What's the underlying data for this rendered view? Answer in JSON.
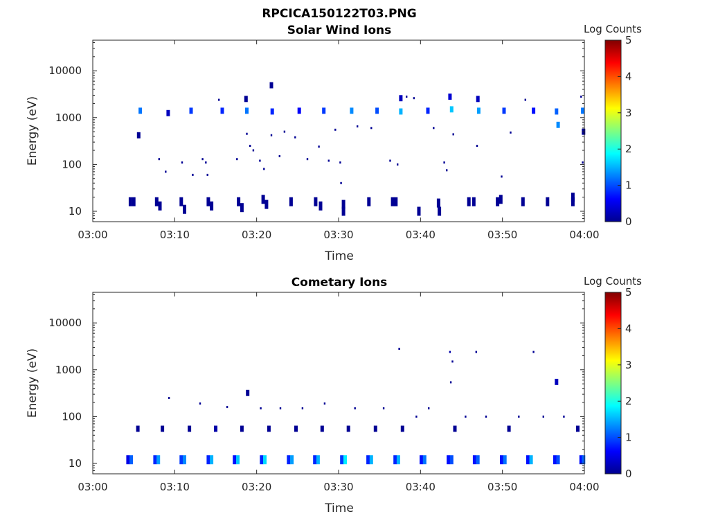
{
  "figure_title": "RPCICA150122T03.PNG",
  "chart_data": [
    {
      "type": "heatmap",
      "title": "Solar Wind Ions",
      "xlabel": "Time",
      "ylabel": "Energy (eV)",
      "y_scale": "log",
      "xlim": [
        "03:00",
        "04:00"
      ],
      "ylim": [
        6,
        45000
      ],
      "x_ticks": [
        "03:00",
        "03:10",
        "03:20",
        "03:30",
        "03:40",
        "03:50",
        "04:00"
      ],
      "y_ticks": [
        "10",
        "100",
        "1000",
        "10000"
      ],
      "colorbar": {
        "label": "Log Counts",
        "range": [
          0,
          5
        ],
        "ticks": [
          "0",
          "1",
          "2",
          "3",
          "4",
          "5"
        ],
        "colormap": "jet"
      },
      "cells": [
        {
          "t": 4.6,
          "e": 16,
          "c": 0.1
        },
        {
          "t": 5.0,
          "e": 16,
          "c": 0.1
        },
        {
          "t": 5.8,
          "e": 1400,
          "c": 1.2
        },
        {
          "t": 5.6,
          "e": 420,
          "c": 0.1
        },
        {
          "t": 7.8,
          "e": 16,
          "c": 0.1
        },
        {
          "t": 8.2,
          "e": 13,
          "c": 0.1
        },
        {
          "t": 9.2,
          "e": 1250,
          "c": 0.3
        },
        {
          "t": 10.8,
          "e": 16,
          "c": 0.1
        },
        {
          "t": 11.2,
          "e": 11,
          "c": 0.1
        },
        {
          "t": 12.0,
          "e": 1400,
          "c": 0.9
        },
        {
          "t": 14.1,
          "e": 16,
          "c": 0.1
        },
        {
          "t": 14.5,
          "e": 13,
          "c": 0.1
        },
        {
          "t": 15.8,
          "e": 1400,
          "c": 0.8
        },
        {
          "t": 17.8,
          "e": 16,
          "c": 0.1
        },
        {
          "t": 18.2,
          "e": 12,
          "c": 0.1
        },
        {
          "t": 18.8,
          "e": 1400,
          "c": 1.2
        },
        {
          "t": 18.7,
          "e": 2500,
          "c": 0.1
        },
        {
          "t": 20.8,
          "e": 18,
          "c": 0.1
        },
        {
          "t": 21.2,
          "e": 14,
          "c": 0.1
        },
        {
          "t": 21.9,
          "e": 1350,
          "c": 0.8
        },
        {
          "t": 21.8,
          "e": 4900,
          "c": 0.1
        },
        {
          "t": 24.2,
          "e": 16,
          "c": 0.1
        },
        {
          "t": 25.2,
          "e": 1400,
          "c": 0.6
        },
        {
          "t": 27.2,
          "e": 16,
          "c": 0.1
        },
        {
          "t": 27.8,
          "e": 13,
          "c": 0.1
        },
        {
          "t": 28.2,
          "e": 1400,
          "c": 0.9
        },
        {
          "t": 30.6,
          "e": 14,
          "c": 0.1
        },
        {
          "t": 30.6,
          "e": 10,
          "c": 0.1
        },
        {
          "t": 31.6,
          "e": 1400,
          "c": 1.3
        },
        {
          "t": 33.7,
          "e": 16,
          "c": 0.1
        },
        {
          "t": 34.7,
          "e": 1400,
          "c": 1.0
        },
        {
          "t": 36.6,
          "e": 16,
          "c": 0.1
        },
        {
          "t": 37.0,
          "e": 16,
          "c": 0.1
        },
        {
          "t": 37.6,
          "e": 1350,
          "c": 1.5
        },
        {
          "t": 37.6,
          "e": 2600,
          "c": 0.3
        },
        {
          "t": 39.8,
          "e": 10,
          "c": 0.1
        },
        {
          "t": 40.9,
          "e": 1400,
          "c": 0.8
        },
        {
          "t": 42.2,
          "e": 15,
          "c": 0.1
        },
        {
          "t": 42.3,
          "e": 10,
          "c": 0.1
        },
        {
          "t": 43.8,
          "e": 1500,
          "c": 1.6
        },
        {
          "t": 43.6,
          "e": 2800,
          "c": 0.4
        },
        {
          "t": 45.9,
          "e": 16,
          "c": 0.1
        },
        {
          "t": 46.5,
          "e": 16,
          "c": 0.1
        },
        {
          "t": 47.1,
          "e": 1400,
          "c": 1.4
        },
        {
          "t": 47.0,
          "e": 2500,
          "c": 0.3
        },
        {
          "t": 49.4,
          "e": 16,
          "c": 0.1
        },
        {
          "t": 49.8,
          "e": 18,
          "c": 0.1
        },
        {
          "t": 50.2,
          "e": 1400,
          "c": 0.9
        },
        {
          "t": 52.5,
          "e": 16,
          "c": 0.1
        },
        {
          "t": 53.8,
          "e": 1400,
          "c": 0.7
        },
        {
          "t": 55.5,
          "e": 16,
          "c": 0.1
        },
        {
          "t": 56.6,
          "e": 1350,
          "c": 1.1
        },
        {
          "t": 56.8,
          "e": 700,
          "c": 1.3
        },
        {
          "t": 58.6,
          "e": 16,
          "c": 0.1
        },
        {
          "t": 58.6,
          "e": 20,
          "c": 0.1
        },
        {
          "t": 59.8,
          "e": 1400,
          "c": 1.2
        },
        {
          "t": 59.9,
          "e": 500,
          "c": 0.1
        }
      ],
      "specks": [
        {
          "t": 8.1,
          "e": 130,
          "c": 0.1
        },
        {
          "t": 8.9,
          "e": 70,
          "c": 0.1
        },
        {
          "t": 10.9,
          "e": 110,
          "c": 0.1
        },
        {
          "t": 12.2,
          "e": 60,
          "c": 0.1
        },
        {
          "t": 13.4,
          "e": 130,
          "c": 0.1
        },
        {
          "t": 13.8,
          "e": 110,
          "c": 0.1
        },
        {
          "t": 14.0,
          "e": 60,
          "c": 0.1
        },
        {
          "t": 15.4,
          "e": 2400,
          "c": 0.1
        },
        {
          "t": 17.6,
          "e": 130,
          "c": 0.1
        },
        {
          "t": 18.8,
          "e": 450,
          "c": 0.1
        },
        {
          "t": 19.2,
          "e": 250,
          "c": 0.1
        },
        {
          "t": 19.6,
          "e": 200,
          "c": 0.1
        },
        {
          "t": 20.4,
          "e": 120,
          "c": 0.1
        },
        {
          "t": 20.9,
          "e": 80,
          "c": 0.1
        },
        {
          "t": 21.8,
          "e": 420,
          "c": 0.1
        },
        {
          "t": 22.8,
          "e": 150,
          "c": 0.1
        },
        {
          "t": 23.4,
          "e": 500,
          "c": 0.1
        },
        {
          "t": 24.7,
          "e": 380,
          "c": 0.1
        },
        {
          "t": 26.2,
          "e": 130,
          "c": 0.1
        },
        {
          "t": 27.6,
          "e": 240,
          "c": 0.1
        },
        {
          "t": 28.8,
          "e": 120,
          "c": 0.1
        },
        {
          "t": 29.6,
          "e": 550,
          "c": 0.1
        },
        {
          "t": 30.2,
          "e": 110,
          "c": 0.1
        },
        {
          "t": 30.3,
          "e": 40,
          "c": 0.1
        },
        {
          "t": 32.3,
          "e": 650,
          "c": 0.1
        },
        {
          "t": 34.0,
          "e": 600,
          "c": 0.1
        },
        {
          "t": 36.3,
          "e": 120,
          "c": 0.1
        },
        {
          "t": 37.2,
          "e": 100,
          "c": 0.1
        },
        {
          "t": 38.3,
          "e": 2800,
          "c": 0.1
        },
        {
          "t": 39.2,
          "e": 2600,
          "c": 0.1
        },
        {
          "t": 41.6,
          "e": 600,
          "c": 0.1
        },
        {
          "t": 42.9,
          "e": 110,
          "c": 0.1
        },
        {
          "t": 43.2,
          "e": 75,
          "c": 0.1
        },
        {
          "t": 44.0,
          "e": 440,
          "c": 0.1
        },
        {
          "t": 46.9,
          "e": 250,
          "c": 0.1
        },
        {
          "t": 49.9,
          "e": 55,
          "c": 0.1
        },
        {
          "t": 51.0,
          "e": 480,
          "c": 0.1
        },
        {
          "t": 52.8,
          "e": 2400,
          "c": 0.1
        },
        {
          "t": 59.6,
          "e": 2800,
          "c": 0.1
        },
        {
          "t": 59.8,
          "e": 110,
          "c": 0.1
        }
      ]
    },
    {
      "type": "heatmap",
      "title": "Cometary Ions",
      "xlabel": "Time",
      "ylabel": "Energy (eV)",
      "y_scale": "log",
      "xlim": [
        "03:00",
        "04:00"
      ],
      "ylim": [
        6,
        45000
      ],
      "x_ticks": [
        "03:00",
        "03:10",
        "03:20",
        "03:30",
        "03:40",
        "03:50",
        "04:00"
      ],
      "y_ticks": [
        "10",
        "100",
        "1000",
        "10000"
      ],
      "colorbar": {
        "label": "Log Counts",
        "range": [
          0,
          5
        ],
        "ticks": [
          "0",
          "1",
          "2",
          "3",
          "4",
          "5"
        ],
        "colormap": "jet"
      },
      "cells": [
        {
          "t": 4.3,
          "e": 12,
          "c": 0.5
        },
        {
          "t": 4.7,
          "e": 12,
          "c": 1.1
        },
        {
          "t": 7.6,
          "e": 12,
          "c": 0.8
        },
        {
          "t": 8.0,
          "e": 12,
          "c": 1.4
        },
        {
          "t": 10.8,
          "e": 12,
          "c": 0.9
        },
        {
          "t": 11.2,
          "e": 12,
          "c": 1.3
        },
        {
          "t": 14.1,
          "e": 12,
          "c": 0.8
        },
        {
          "t": 14.5,
          "e": 12,
          "c": 1.5
        },
        {
          "t": 17.3,
          "e": 12,
          "c": 0.7
        },
        {
          "t": 17.7,
          "e": 12,
          "c": 1.6
        },
        {
          "t": 20.6,
          "e": 12,
          "c": 0.8
        },
        {
          "t": 21.0,
          "e": 12,
          "c": 1.7
        },
        {
          "t": 23.9,
          "e": 12,
          "c": 0.8
        },
        {
          "t": 24.3,
          "e": 12,
          "c": 1.4
        },
        {
          "t": 27.1,
          "e": 12,
          "c": 0.8
        },
        {
          "t": 27.5,
          "e": 12,
          "c": 1.5
        },
        {
          "t": 30.4,
          "e": 12,
          "c": 0.9
        },
        {
          "t": 30.8,
          "e": 12,
          "c": 1.8
        },
        {
          "t": 33.6,
          "e": 12,
          "c": 0.8
        },
        {
          "t": 34.0,
          "e": 12,
          "c": 1.5
        },
        {
          "t": 36.9,
          "e": 12,
          "c": 0.8
        },
        {
          "t": 37.3,
          "e": 12,
          "c": 1.5
        },
        {
          "t": 40.1,
          "e": 12,
          "c": 0.7
        },
        {
          "t": 40.5,
          "e": 12,
          "c": 1.2
        },
        {
          "t": 43.4,
          "e": 12,
          "c": 0.7
        },
        {
          "t": 43.8,
          "e": 12,
          "c": 1.0
        },
        {
          "t": 46.6,
          "e": 12,
          "c": 0.7
        },
        {
          "t": 47.0,
          "e": 12,
          "c": 1.1
        },
        {
          "t": 49.9,
          "e": 12,
          "c": 0.7
        },
        {
          "t": 50.3,
          "e": 12,
          "c": 1.2
        },
        {
          "t": 53.1,
          "e": 12,
          "c": 0.7
        },
        {
          "t": 53.5,
          "e": 12,
          "c": 1.5
        },
        {
          "t": 56.4,
          "e": 12,
          "c": 0.7
        },
        {
          "t": 56.8,
          "e": 12,
          "c": 1.0
        },
        {
          "t": 59.6,
          "e": 12,
          "c": 0.7
        },
        {
          "t": 59.9,
          "e": 12,
          "c": 1.1
        },
        {
          "t": 5.5,
          "e": 55,
          "c": 0.1
        },
        {
          "t": 8.5,
          "e": 55,
          "c": 0.1
        },
        {
          "t": 11.8,
          "e": 55,
          "c": 0.1
        },
        {
          "t": 15.0,
          "e": 55,
          "c": 0.2
        },
        {
          "t": 18.2,
          "e": 55,
          "c": 0.1
        },
        {
          "t": 21.5,
          "e": 55,
          "c": 0.1
        },
        {
          "t": 24.8,
          "e": 55,
          "c": 0.1
        },
        {
          "t": 28.0,
          "e": 55,
          "c": 0.1
        },
        {
          "t": 31.2,
          "e": 55,
          "c": 0.1
        },
        {
          "t": 34.5,
          "e": 55,
          "c": 0.1
        },
        {
          "t": 37.8,
          "e": 55,
          "c": 0.1
        },
        {
          "t": 44.2,
          "e": 55,
          "c": 0.1
        },
        {
          "t": 50.8,
          "e": 55,
          "c": 0.1
        },
        {
          "t": 59.2,
          "e": 55,
          "c": 0.1
        },
        {
          "t": 56.6,
          "e": 550,
          "c": 0.3
        },
        {
          "t": 18.9,
          "e": 320,
          "c": 0.1
        }
      ],
      "specks": [
        {
          "t": 9.3,
          "e": 250,
          "c": 0.1
        },
        {
          "t": 13.1,
          "e": 190,
          "c": 0.1
        },
        {
          "t": 16.4,
          "e": 160,
          "c": 0.1
        },
        {
          "t": 20.5,
          "e": 150,
          "c": 0.1
        },
        {
          "t": 22.9,
          "e": 150,
          "c": 0.1
        },
        {
          "t": 25.6,
          "e": 150,
          "c": 0.1
        },
        {
          "t": 28.3,
          "e": 190,
          "c": 0.1
        },
        {
          "t": 32.0,
          "e": 150,
          "c": 0.1
        },
        {
          "t": 35.5,
          "e": 150,
          "c": 0.1
        },
        {
          "t": 37.4,
          "e": 2800,
          "c": 0.1
        },
        {
          "t": 43.6,
          "e": 2400,
          "c": 0.2
        },
        {
          "t": 43.9,
          "e": 1500,
          "c": 0.1
        },
        {
          "t": 43.7,
          "e": 540,
          "c": 0.1
        },
        {
          "t": 46.8,
          "e": 2400,
          "c": 0.1
        },
        {
          "t": 53.8,
          "e": 2400,
          "c": 0.1
        },
        {
          "t": 41.0,
          "e": 150,
          "c": 0.1
        },
        {
          "t": 39.5,
          "e": 100,
          "c": 0.1
        },
        {
          "t": 45.5,
          "e": 100,
          "c": 0.1
        },
        {
          "t": 48.0,
          "e": 100,
          "c": 0.1
        },
        {
          "t": 52.0,
          "e": 100,
          "c": 0.1
        },
        {
          "t": 55.0,
          "e": 100,
          "c": 0.1
        },
        {
          "t": 57.5,
          "e": 100,
          "c": 0.1
        }
      ]
    }
  ]
}
